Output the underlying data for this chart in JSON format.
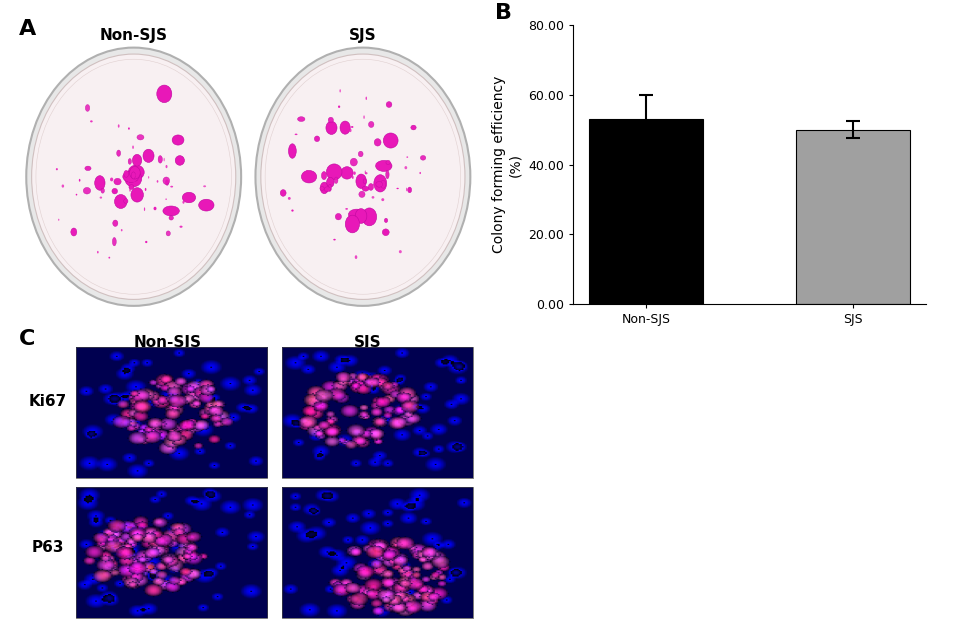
{
  "panel_b": {
    "categories": [
      "Non-SJS",
      "SJS"
    ],
    "values": [
      53.0,
      50.0
    ],
    "errors": [
      7.0,
      2.5
    ],
    "bar_colors": [
      "#000000",
      "#a0a0a0"
    ],
    "ylabel": "Colony forming efficiency\n(%)",
    "ylim": [
      0,
      80.0
    ],
    "yticks": [
      0.0,
      20.0,
      40.0,
      60.0,
      80.0
    ],
    "ytick_labels": [
      "0.00",
      "20.00",
      "40.00",
      "60.00",
      "80.00"
    ],
    "bar_width": 0.55,
    "bar_edge_color": "#000000",
    "error_capsize": 5,
    "error_color": "#000000",
    "error_linewidth": 1.5
  },
  "label_A": "A",
  "label_B": "B",
  "label_C": "C",
  "panel_a_labels": [
    "Non-SJS",
    "SJS"
  ],
  "panel_c_row_labels": [
    "Ki67",
    "P63"
  ],
  "panel_c_col_labels": [
    "Non-SJS",
    "SJS"
  ],
  "background_color": "#ffffff",
  "text_color": "#000000",
  "font_size_panel_label": 14,
  "font_size_axis_label": 10,
  "font_size_tick_label": 9,
  "font_size_col_label": 11,
  "font_size_row_label": 11
}
